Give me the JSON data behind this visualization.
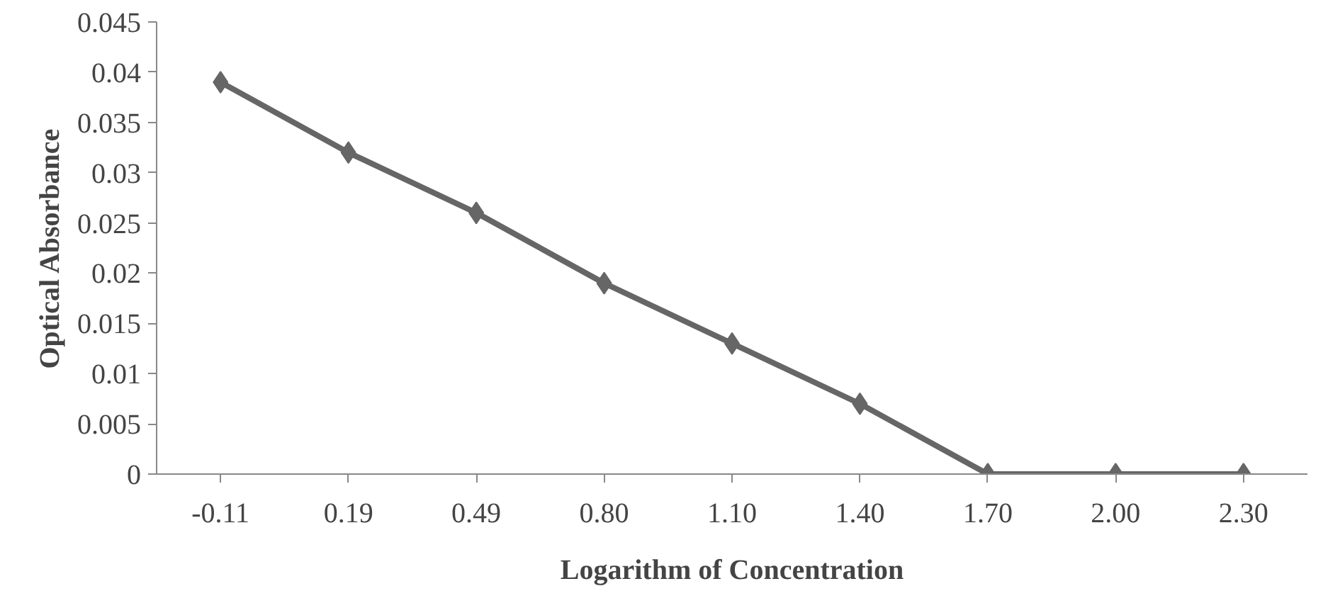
{
  "chart_data": {
    "type": "line",
    "xlabel": "Logarithm of Concentration",
    "ylabel": "Optical Absorbance",
    "categories": [
      "-0.11",
      "0.19",
      "0.49",
      "0.80",
      "1.10",
      "1.40",
      "1.70",
      "2.00",
      "2.30"
    ],
    "series": [
      {
        "color": "#666666",
        "values": [
          0.039,
          0.032,
          0.026,
          0.019,
          0.013,
          0.007,
          0,
          0,
          0
        ]
      }
    ],
    "ylim": [
      0,
      0.045
    ],
    "yticks": [
      0,
      0.005,
      0.01,
      0.015,
      0.02,
      0.025,
      0.03,
      0.035,
      0.04,
      0.045
    ],
    "grid": false,
    "marker": "diamond",
    "line_style": "solid"
  }
}
